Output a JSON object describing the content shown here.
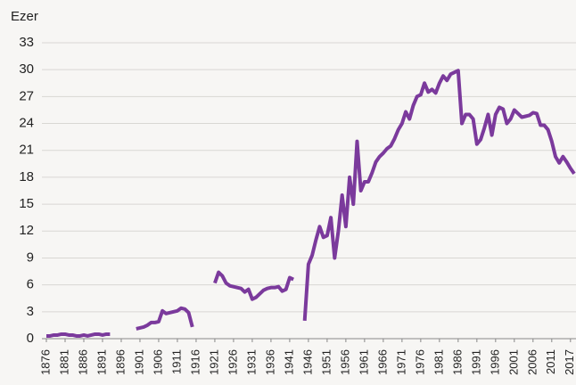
{
  "chart_data": {
    "type": "line",
    "y_axis_label": "Ezer",
    "categories": [
      "1876",
      null,
      null,
      null,
      null,
      "1881",
      null,
      null,
      null,
      null,
      "1886",
      null,
      null,
      null,
      null,
      "1891",
      null,
      null,
      null,
      null,
      "1896",
      null,
      null,
      null,
      null,
      "1901",
      null,
      null,
      null,
      null,
      "1906",
      null,
      null,
      null,
      null,
      "1911",
      null,
      null,
      null,
      null,
      "1916",
      null,
      null,
      null,
      null,
      "1921",
      null,
      null,
      null,
      null,
      "1926",
      null,
      null,
      null,
      null,
      "1931",
      null,
      null,
      null,
      null,
      "1936",
      null,
      null,
      null,
      null,
      "1941",
      null,
      null,
      null,
      null,
      "1946",
      null,
      null,
      null,
      null,
      "1951",
      null,
      null,
      null,
      null,
      "1956",
      null,
      null,
      null,
      null,
      "1961",
      null,
      null,
      null,
      null,
      "1966",
      null,
      null,
      null,
      null,
      "1971",
      null,
      null,
      null,
      null,
      "1976",
      null,
      null,
      null,
      null,
      "1981",
      null,
      null,
      null,
      null,
      "1986",
      null,
      null,
      null,
      null,
      "1991",
      null,
      null,
      null,
      null,
      "1996",
      null,
      null,
      null,
      null,
      "2001",
      null,
      null,
      null,
      null,
      "2006",
      null,
      null,
      null,
      null,
      "2011",
      null,
      null,
      null,
      null,
      "2017",
      null
    ],
    "series": [
      {
        "color": "#7b3a9c",
        "values": [
          0.3,
          0.3,
          0.4,
          0.4,
          0.5,
          0.5,
          0.4,
          0.4,
          0.3,
          0.3,
          0.4,
          0.3,
          0.4,
          0.5,
          0.5,
          0.4,
          0.5,
          0.5,
          null,
          null,
          null,
          null,
          null,
          null,
          1.1,
          1.2,
          1.3,
          1.5,
          1.8,
          1.8,
          1.9,
          3.1,
          2.8,
          2.9,
          3.0,
          3.1,
          3.4,
          3.3,
          2.9,
          1.3,
          null,
          null,
          null,
          null,
          null,
          6.2,
          7.4,
          7.0,
          6.2,
          5.9,
          5.8,
          5.7,
          5.6,
          5.2,
          5.5,
          4.4,
          4.6,
          5.0,
          5.4,
          5.6,
          5.7,
          5.7,
          5.8,
          5.3,
          5.5,
          6.8,
          6.6,
          null,
          null,
          2.0,
          8.3,
          9.3,
          11.0,
          12.5,
          11.3,
          11.5,
          13.5,
          9.0,
          12.0,
          16.0,
          12.5,
          18.0,
          15.0,
          22.0,
          16.5,
          17.5,
          17.5,
          18.5,
          19.7,
          20.3,
          20.7,
          21.2,
          21.5,
          22.3,
          23.3,
          24.0,
          25.3,
          24.5,
          26.0,
          27.0,
          27.2,
          28.5,
          27.5,
          27.8,
          27.4,
          28.5,
          29.3,
          28.8,
          29.5,
          29.7,
          29.9,
          24.0,
          25.0,
          25.0,
          24.5,
          21.7,
          22.2,
          23.5,
          25.0,
          22.7,
          25.0,
          25.8,
          25.6,
          24.0,
          24.5,
          25.5,
          25.1,
          24.7,
          24.8,
          24.9,
          25.2,
          25.1,
          23.8,
          23.8,
          23.3,
          22.0,
          20.3,
          19.6,
          20.3,
          19.7,
          19.0,
          18.4
        ]
      }
    ],
    "ylim": [
      0,
      33
    ],
    "yticks": [
      0,
      3,
      6,
      9,
      12,
      15,
      18,
      21,
      24,
      27,
      30,
      33
    ],
    "grid": true
  }
}
